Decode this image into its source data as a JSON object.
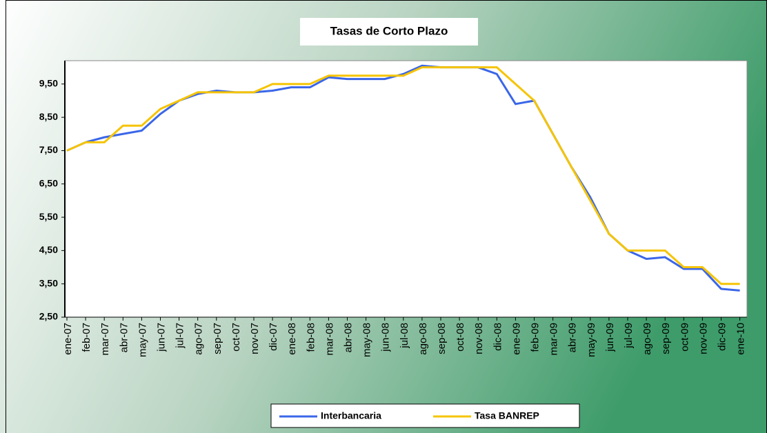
{
  "chart_data": {
    "type": "line",
    "title": "Tasas de Corto Plazo",
    "categories": [
      "ene-07",
      "feb-07",
      "mar-07",
      "abr-07",
      "may-07",
      "jun-07",
      "jul-07",
      "ago-07",
      "sep-07",
      "oct-07",
      "nov-07",
      "dic-07",
      "ene-08",
      "feb-08",
      "mar-08",
      "abr-08",
      "may-08",
      "jun-08",
      "jul-08",
      "ago-08",
      "sep-08",
      "oct-08",
      "nov-08",
      "dic-08",
      "ene-09",
      "feb-09",
      "mar-09",
      "abr-09",
      "may-09",
      "jun-09",
      "jul-09",
      "ago-09",
      "sep-09",
      "oct-09",
      "nov-09",
      "dic-09",
      "ene-10"
    ],
    "series": [
      {
        "name": "Interbancaria",
        "color": "#3a66e8",
        "values": [
          7.5,
          7.75,
          7.9,
          8.0,
          8.1,
          8.6,
          9.0,
          9.2,
          9.3,
          9.25,
          9.25,
          9.3,
          9.4,
          9.4,
          9.7,
          9.65,
          9.65,
          9.65,
          9.8,
          10.05,
          10.0,
          10.0,
          10.0,
          9.8,
          8.9,
          9.0,
          8.0,
          7.0,
          6.1,
          5.0,
          4.5,
          4.25,
          4.3,
          3.95,
          3.95,
          3.35,
          3.3
        ]
      },
      {
        "name": "Tasa BANREP",
        "color": "#f5c400",
        "values": [
          7.5,
          7.75,
          7.75,
          8.25,
          8.25,
          8.75,
          9.0,
          9.25,
          9.25,
          9.25,
          9.25,
          9.5,
          9.5,
          9.5,
          9.75,
          9.75,
          9.75,
          9.75,
          9.75,
          10.0,
          10.0,
          10.0,
          10.0,
          10.0,
          9.5,
          9.0,
          8.0,
          7.0,
          6.0,
          5.0,
          4.5,
          4.5,
          4.5,
          4.0,
          4.0,
          3.5,
          3.5
        ]
      }
    ],
    "ylim": [
      2.5,
      10.2
    ],
    "yticks": [
      {
        "value": 2.5,
        "label": "2,50"
      },
      {
        "value": 3.5,
        "label": "3,50"
      },
      {
        "value": 4.5,
        "label": "4,50"
      },
      {
        "value": 5.5,
        "label": "5,50"
      },
      {
        "value": 6.5,
        "label": "6,50"
      },
      {
        "value": 7.5,
        "label": "7,50"
      },
      {
        "value": 8.5,
        "label": "8,50"
      },
      {
        "value": 9.5,
        "label": "9,50"
      }
    ],
    "legend": "bottom"
  }
}
